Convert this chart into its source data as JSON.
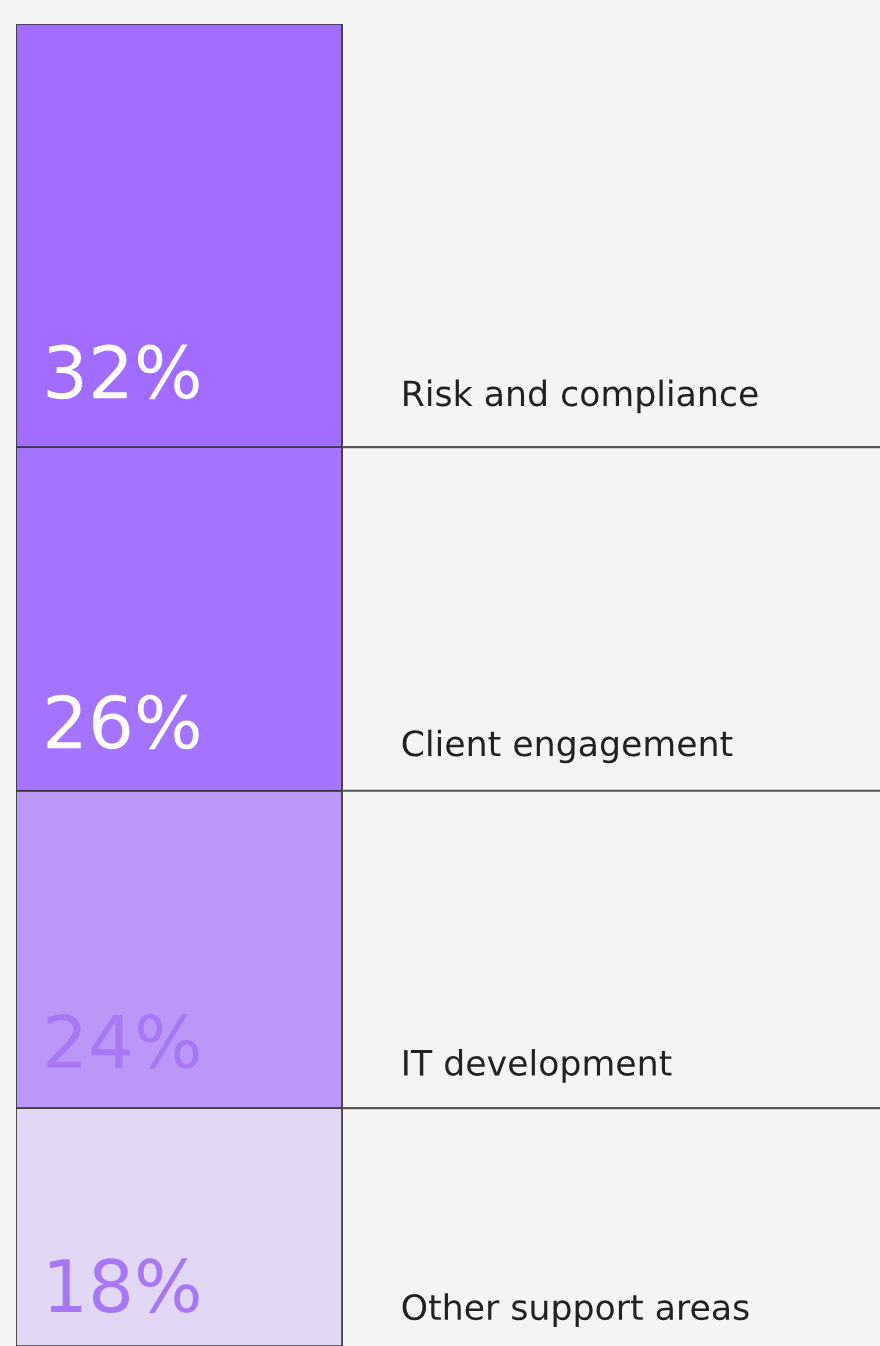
{
  "chart_data": {
    "type": "bar",
    "stacked": true,
    "categories": [
      null
    ],
    "ylim": [
      0,
      100
    ],
    "series": [
      {
        "name": "Other support areas",
        "color": "#e2d8f6",
        "values": [
          18
        ],
        "value_labels": [
          "18%"
        ]
      },
      {
        "name": "IT development",
        "color": "#bb98f8",
        "values": [
          24
        ],
        "value_labels": [
          "24%"
        ]
      },
      {
        "name": "Client engagement",
        "color": "#a474fe",
        "values": [
          26
        ],
        "value_labels": [
          "26%"
        ]
      },
      {
        "name": "Risk and compliance",
        "color": "#a16cff",
        "values": [
          32
        ],
        "value_labels": [
          "32%"
        ]
      }
    ],
    "legend": false
  }
}
